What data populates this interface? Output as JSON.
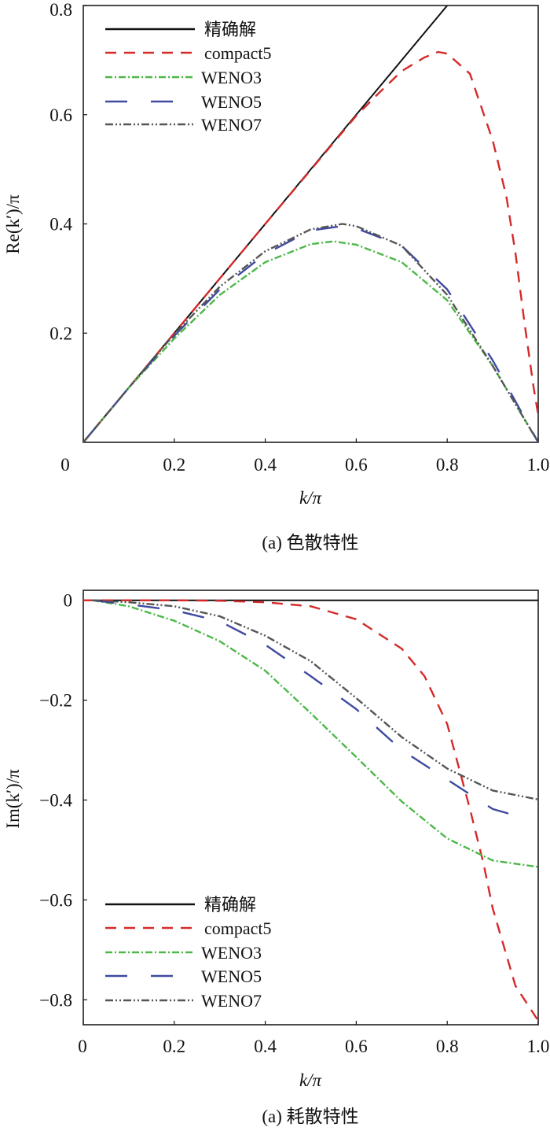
{
  "chart_data": [
    {
      "type": "line",
      "title": "",
      "caption": "(a) 色散特性",
      "xlabel": "k/π",
      "ylabel": "Re(k′)/π",
      "xlim": [
        0,
        1.0
      ],
      "ylim": [
        0,
        0.8
      ],
      "xticks": [
        0,
        0.2,
        0.4,
        0.6,
        0.8,
        1.0
      ],
      "xtick_labels": [
        "0",
        "0.2",
        "0.4",
        "0.6",
        "0.8",
        "1.0"
      ],
      "yticks": [
        0.2,
        0.4,
        0.6,
        0.8
      ],
      "ytick_labels": [
        "0.2",
        "0.4",
        "0.6",
        "0.8"
      ],
      "legend_position": "top-left",
      "grid": false,
      "series": [
        {
          "name": "精确解",
          "color": "#111111",
          "style": "solid",
          "x": [
            0,
            0.8
          ],
          "y": [
            0,
            0.8
          ]
        },
        {
          "name": "compact5",
          "color": "#d42a2a",
          "style": "dash",
          "x": [
            0,
            0.2,
            0.4,
            0.6,
            0.65,
            0.7,
            0.75,
            0.78,
            0.8,
            0.85,
            0.9,
            0.93,
            0.95,
            0.97,
            0.99,
            1.0
          ],
          "y": [
            0,
            0.2,
            0.4,
            0.598,
            0.64,
            0.68,
            0.705,
            0.715,
            0.712,
            0.675,
            0.553,
            0.45,
            0.347,
            0.218,
            0.1,
            0.05
          ]
        },
        {
          "name": "WENO3",
          "color": "#4db848",
          "style": "dashdot",
          "x": [
            0,
            0.1,
            0.2,
            0.3,
            0.4,
            0.5,
            0.55,
            0.6,
            0.7,
            0.8,
            0.9,
            1.0
          ],
          "y": [
            0,
            0.1,
            0.19,
            0.27,
            0.33,
            0.363,
            0.368,
            0.362,
            0.33,
            0.26,
            0.14,
            0.0
          ]
        },
        {
          "name": "WENO5",
          "color": "#3f4aa0",
          "style": "longdash",
          "x": [
            0,
            0.1,
            0.2,
            0.3,
            0.4,
            0.5,
            0.56,
            0.6,
            0.7,
            0.8,
            0.9,
            1.0
          ],
          "y": [
            0,
            0.1,
            0.195,
            0.28,
            0.345,
            0.388,
            0.395,
            0.392,
            0.36,
            0.28,
            0.15,
            0.0
          ]
        },
        {
          "name": "WENO7",
          "color": "#555555",
          "style": "dashdotdot",
          "x": [
            0,
            0.1,
            0.2,
            0.3,
            0.4,
            0.5,
            0.57,
            0.6,
            0.7,
            0.8,
            0.9,
            1.0
          ],
          "y": [
            0,
            0.1,
            0.198,
            0.285,
            0.35,
            0.39,
            0.4,
            0.396,
            0.36,
            0.27,
            0.14,
            0.0
          ]
        }
      ]
    },
    {
      "type": "line",
      "title": "",
      "caption": "(a) 耗散特性",
      "xlabel": "k/π",
      "ylabel": "Im(k′)/π",
      "xlim": [
        0,
        1.0
      ],
      "ylim": [
        -0.85,
        0.02
      ],
      "xticks": [
        0,
        0.2,
        0.4,
        0.6,
        0.8,
        1.0
      ],
      "xtick_labels": [
        "0",
        "0.2",
        "0.4",
        "0.6",
        "0.8",
        "1.0"
      ],
      "yticks": [
        0,
        -0.2,
        -0.4,
        -0.6,
        -0.8
      ],
      "ytick_labels": [
        "0",
        "−0.2",
        "−0.4",
        "−0.6",
        "−0.8"
      ],
      "legend_position": "bottom-left",
      "grid": false,
      "series": [
        {
          "name": "精确解",
          "color": "#111111",
          "style": "solid",
          "x": [
            0,
            1.0
          ],
          "y": [
            0,
            0
          ]
        },
        {
          "name": "compact5",
          "color": "#d42a2a",
          "style": "dash",
          "x": [
            0,
            0.1,
            0.2,
            0.3,
            0.4,
            0.5,
            0.6,
            0.7,
            0.75,
            0.8,
            0.85,
            0.88,
            0.9,
            0.95,
            1.0
          ],
          "y": [
            0,
            0,
            0,
            -0.001,
            -0.004,
            -0.012,
            -0.038,
            -0.097,
            -0.152,
            -0.248,
            -0.418,
            -0.528,
            -0.617,
            -0.772,
            -0.842
          ]
        },
        {
          "name": "WENO3",
          "color": "#4db848",
          "style": "dashdot",
          "x": [
            0.02,
            0.1,
            0.2,
            0.3,
            0.4,
            0.5,
            0.6,
            0.7,
            0.8,
            0.9,
            1.0
          ],
          "y": [
            0,
            -0.012,
            -0.041,
            -0.082,
            -0.141,
            -0.226,
            -0.314,
            -0.403,
            -0.477,
            -0.521,
            -0.534
          ]
        },
        {
          "name": "WENO5",
          "color": "#3f4aa0",
          "style": "longdash",
          "x": [
            0.02,
            0.1,
            0.2,
            0.3,
            0.4,
            0.5,
            0.6,
            0.7,
            0.8,
            0.9,
            0.95
          ],
          "y": [
            0,
            -0.008,
            -0.02,
            -0.042,
            -0.089,
            -0.152,
            -0.218,
            -0.3,
            -0.359,
            -0.418,
            -0.431
          ]
        },
        {
          "name": "WENO7",
          "color": "#555555",
          "style": "dashdotdot",
          "x": [
            0.02,
            0.1,
            0.2,
            0.3,
            0.4,
            0.5,
            0.6,
            0.7,
            0.8,
            0.9,
            1.0
          ],
          "y": [
            0,
            -0.004,
            -0.012,
            -0.032,
            -0.071,
            -0.122,
            -0.196,
            -0.274,
            -0.337,
            -0.381,
            -0.399
          ]
        }
      ]
    }
  ]
}
